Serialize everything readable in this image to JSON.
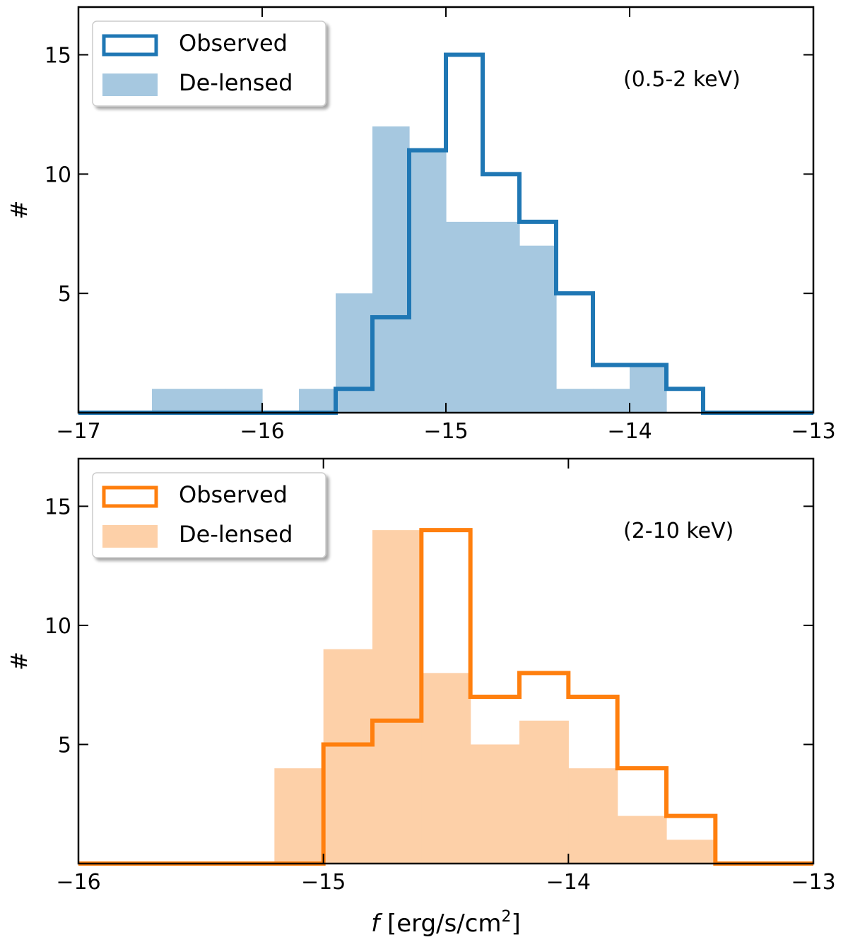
{
  "colors": {
    "blue_line": "#1f77b4",
    "blue_fill": "#a6c8e0",
    "orange_line": "#ff7f0e",
    "orange_fill": "#fdd0a8"
  },
  "xlabel": {
    "italic": "f",
    "text": " [erg/s/cm",
    "sup": "2",
    "close": "]"
  },
  "chart_data": [
    {
      "type": "histogram",
      "annotation": "(0.5-2 keV)",
      "ylabel": "#",
      "xlim": [
        -17,
        -13
      ],
      "ylim": [
        0,
        17
      ],
      "xticks": [
        -17,
        -16,
        -15,
        -14,
        -13
      ],
      "xtick_labels": [
        "−17",
        "−16",
        "−15",
        "−14",
        "−13"
      ],
      "yticks": [
        5,
        10,
        15
      ],
      "ytick_labels": [
        "5",
        "10",
        "15"
      ],
      "bin_edges": [
        -17.0,
        -16.8,
        -16.6,
        -16.4,
        -16.2,
        -16.0,
        -15.8,
        -15.6,
        -15.4,
        -15.2,
        -15.0,
        -14.8,
        -14.6,
        -14.4,
        -14.2,
        -14.0,
        -13.8,
        -13.6,
        -13.4,
        -13.2,
        -13.0
      ],
      "series": [
        {
          "name": "Observed",
          "style": "step",
          "color_key": "blue_line",
          "values": [
            0,
            0,
            0,
            0,
            0,
            0,
            0,
            1,
            4,
            11,
            15,
            10,
            8,
            5,
            2,
            2,
            1,
            0,
            0,
            0
          ]
        },
        {
          "name": "De-lensed",
          "style": "filled",
          "color_key": "blue_fill",
          "values": [
            0,
            0,
            1,
            1,
            1,
            0,
            1,
            5,
            12,
            11,
            8,
            8,
            7,
            1,
            1,
            2,
            0,
            0,
            0,
            0
          ]
        }
      ],
      "legend": [
        "Observed",
        "De-lensed"
      ],
      "legend_position": "upper-left"
    },
    {
      "type": "histogram",
      "annotation": "(2-10 keV)",
      "ylabel": "#",
      "xlim": [
        -16,
        -13
      ],
      "ylim": [
        0,
        17
      ],
      "xticks": [
        -16,
        -15,
        -14,
        -13
      ],
      "xtick_labels": [
        "−16",
        "−15",
        "−14",
        "−13"
      ],
      "yticks": [
        5,
        10,
        15
      ],
      "ytick_labels": [
        "5",
        "10",
        "15"
      ],
      "bin_edges": [
        -16.0,
        -15.8,
        -15.6,
        -15.4,
        -15.2,
        -15.0,
        -14.8,
        -14.6,
        -14.4,
        -14.2,
        -14.0,
        -13.8,
        -13.6,
        -13.4,
        -13.2,
        -13.0
      ],
      "series": [
        {
          "name": "Observed",
          "style": "step",
          "color_key": "orange_line",
          "values": [
            0,
            0,
            0,
            0,
            0,
            5,
            6,
            14,
            7,
            8,
            7,
            4,
            2,
            0,
            0
          ]
        },
        {
          "name": "De-lensed",
          "style": "filled",
          "color_key": "orange_fill",
          "values": [
            0,
            0,
            0,
            0,
            4,
            9,
            14,
            8,
            5,
            6,
            4,
            2,
            1,
            0,
            0
          ]
        }
      ],
      "legend": [
        "Observed",
        "De-lensed"
      ],
      "legend_position": "upper-left"
    }
  ]
}
